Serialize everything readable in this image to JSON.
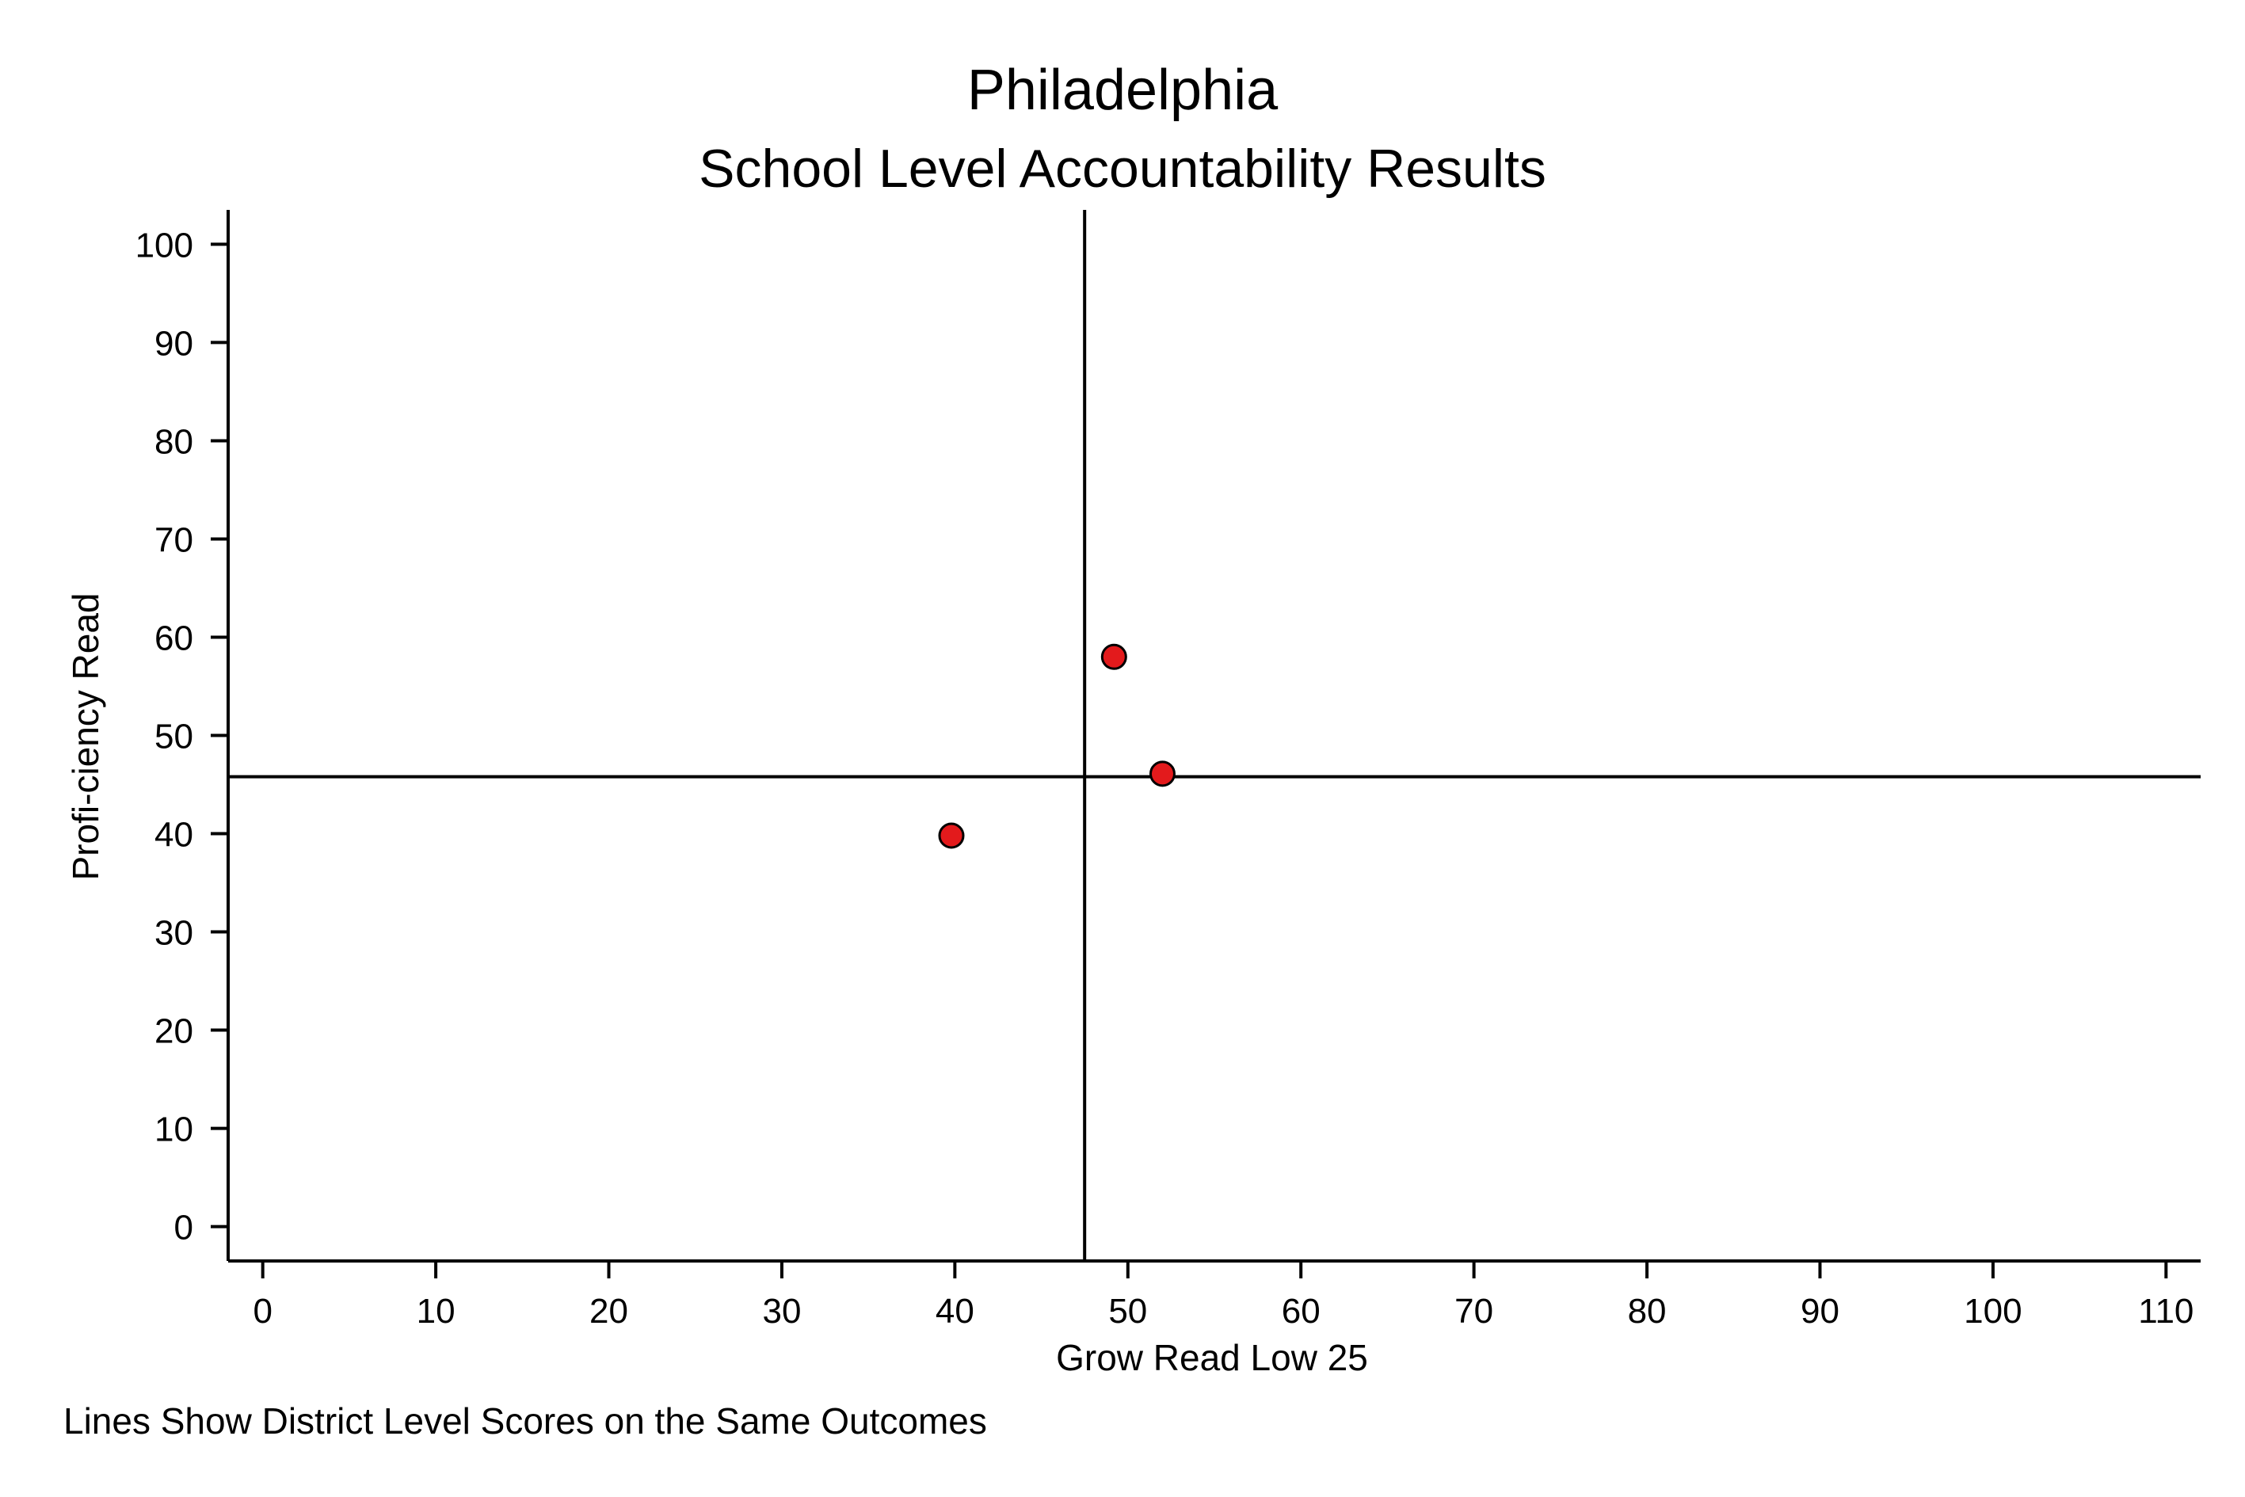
{
  "chart_data": {
    "type": "scatter",
    "title": "Philadelphia",
    "subtitle": "School Level Accountability Results",
    "xlabel": "Grow Read Low 25",
    "ylabel": "Profi-ciency Read",
    "note": "Lines Show District Level Scores on the Same Outcomes",
    "xlim": [
      -2,
      112
    ],
    "ylim": [
      -3.5,
      103.5
    ],
    "xticks": [
      0,
      10,
      20,
      30,
      40,
      50,
      60,
      70,
      80,
      90,
      100,
      110
    ],
    "yticks": [
      0,
      10,
      20,
      30,
      40,
      50,
      60,
      70,
      80,
      90,
      100
    ],
    "reference_lines": {
      "x": 47.5,
      "y": 45.8
    },
    "points": [
      {
        "x": 39.8,
        "y": 39.8
      },
      {
        "x": 49.2,
        "y": 58.0
      },
      {
        "x": 52.0,
        "y": 46.1
      }
    ],
    "marker_color": "#e31a1c",
    "marker_edge": "#000000",
    "grid": false
  }
}
